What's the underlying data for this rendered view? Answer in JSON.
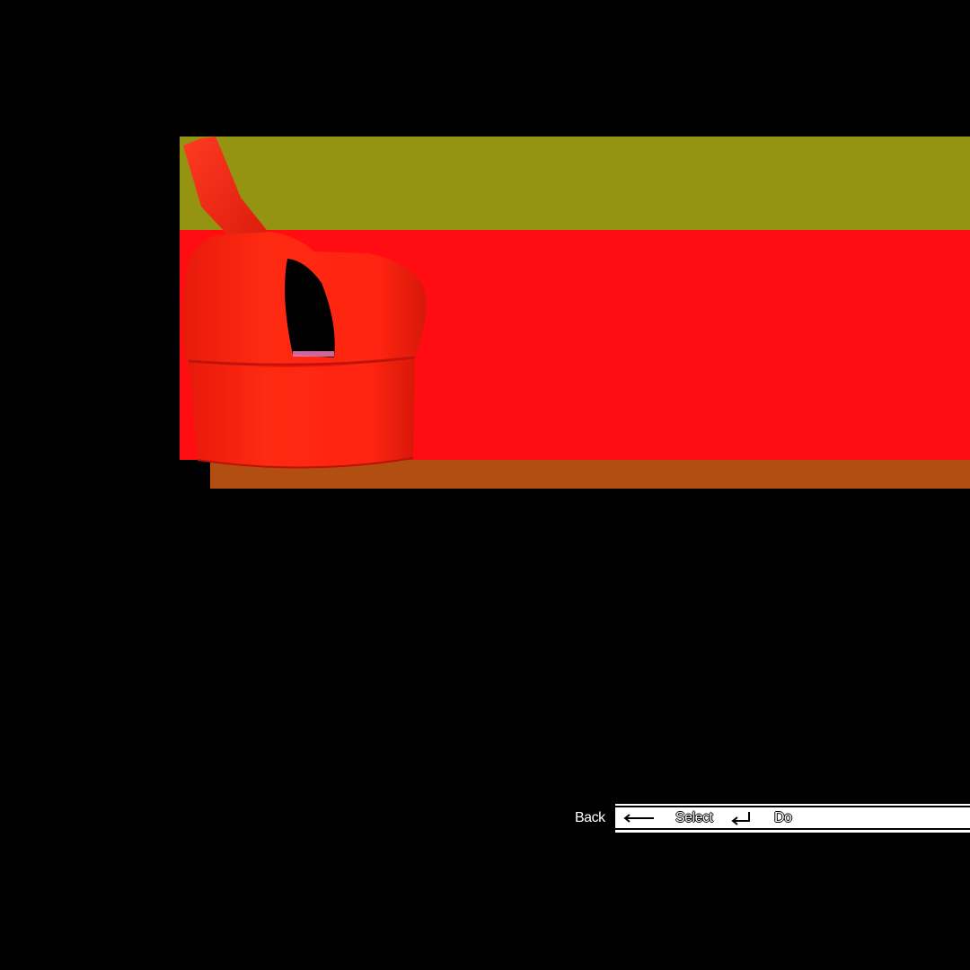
{
  "preview": {
    "item_color": "#ff1a0d",
    "icon": "one-shoulder-crop-top"
  },
  "controls": {
    "back_label": "Back",
    "back_icon": "backspace-arrow-icon",
    "select_label": "Select",
    "select_icon": "enter-key-icon",
    "done_label": "Do"
  }
}
